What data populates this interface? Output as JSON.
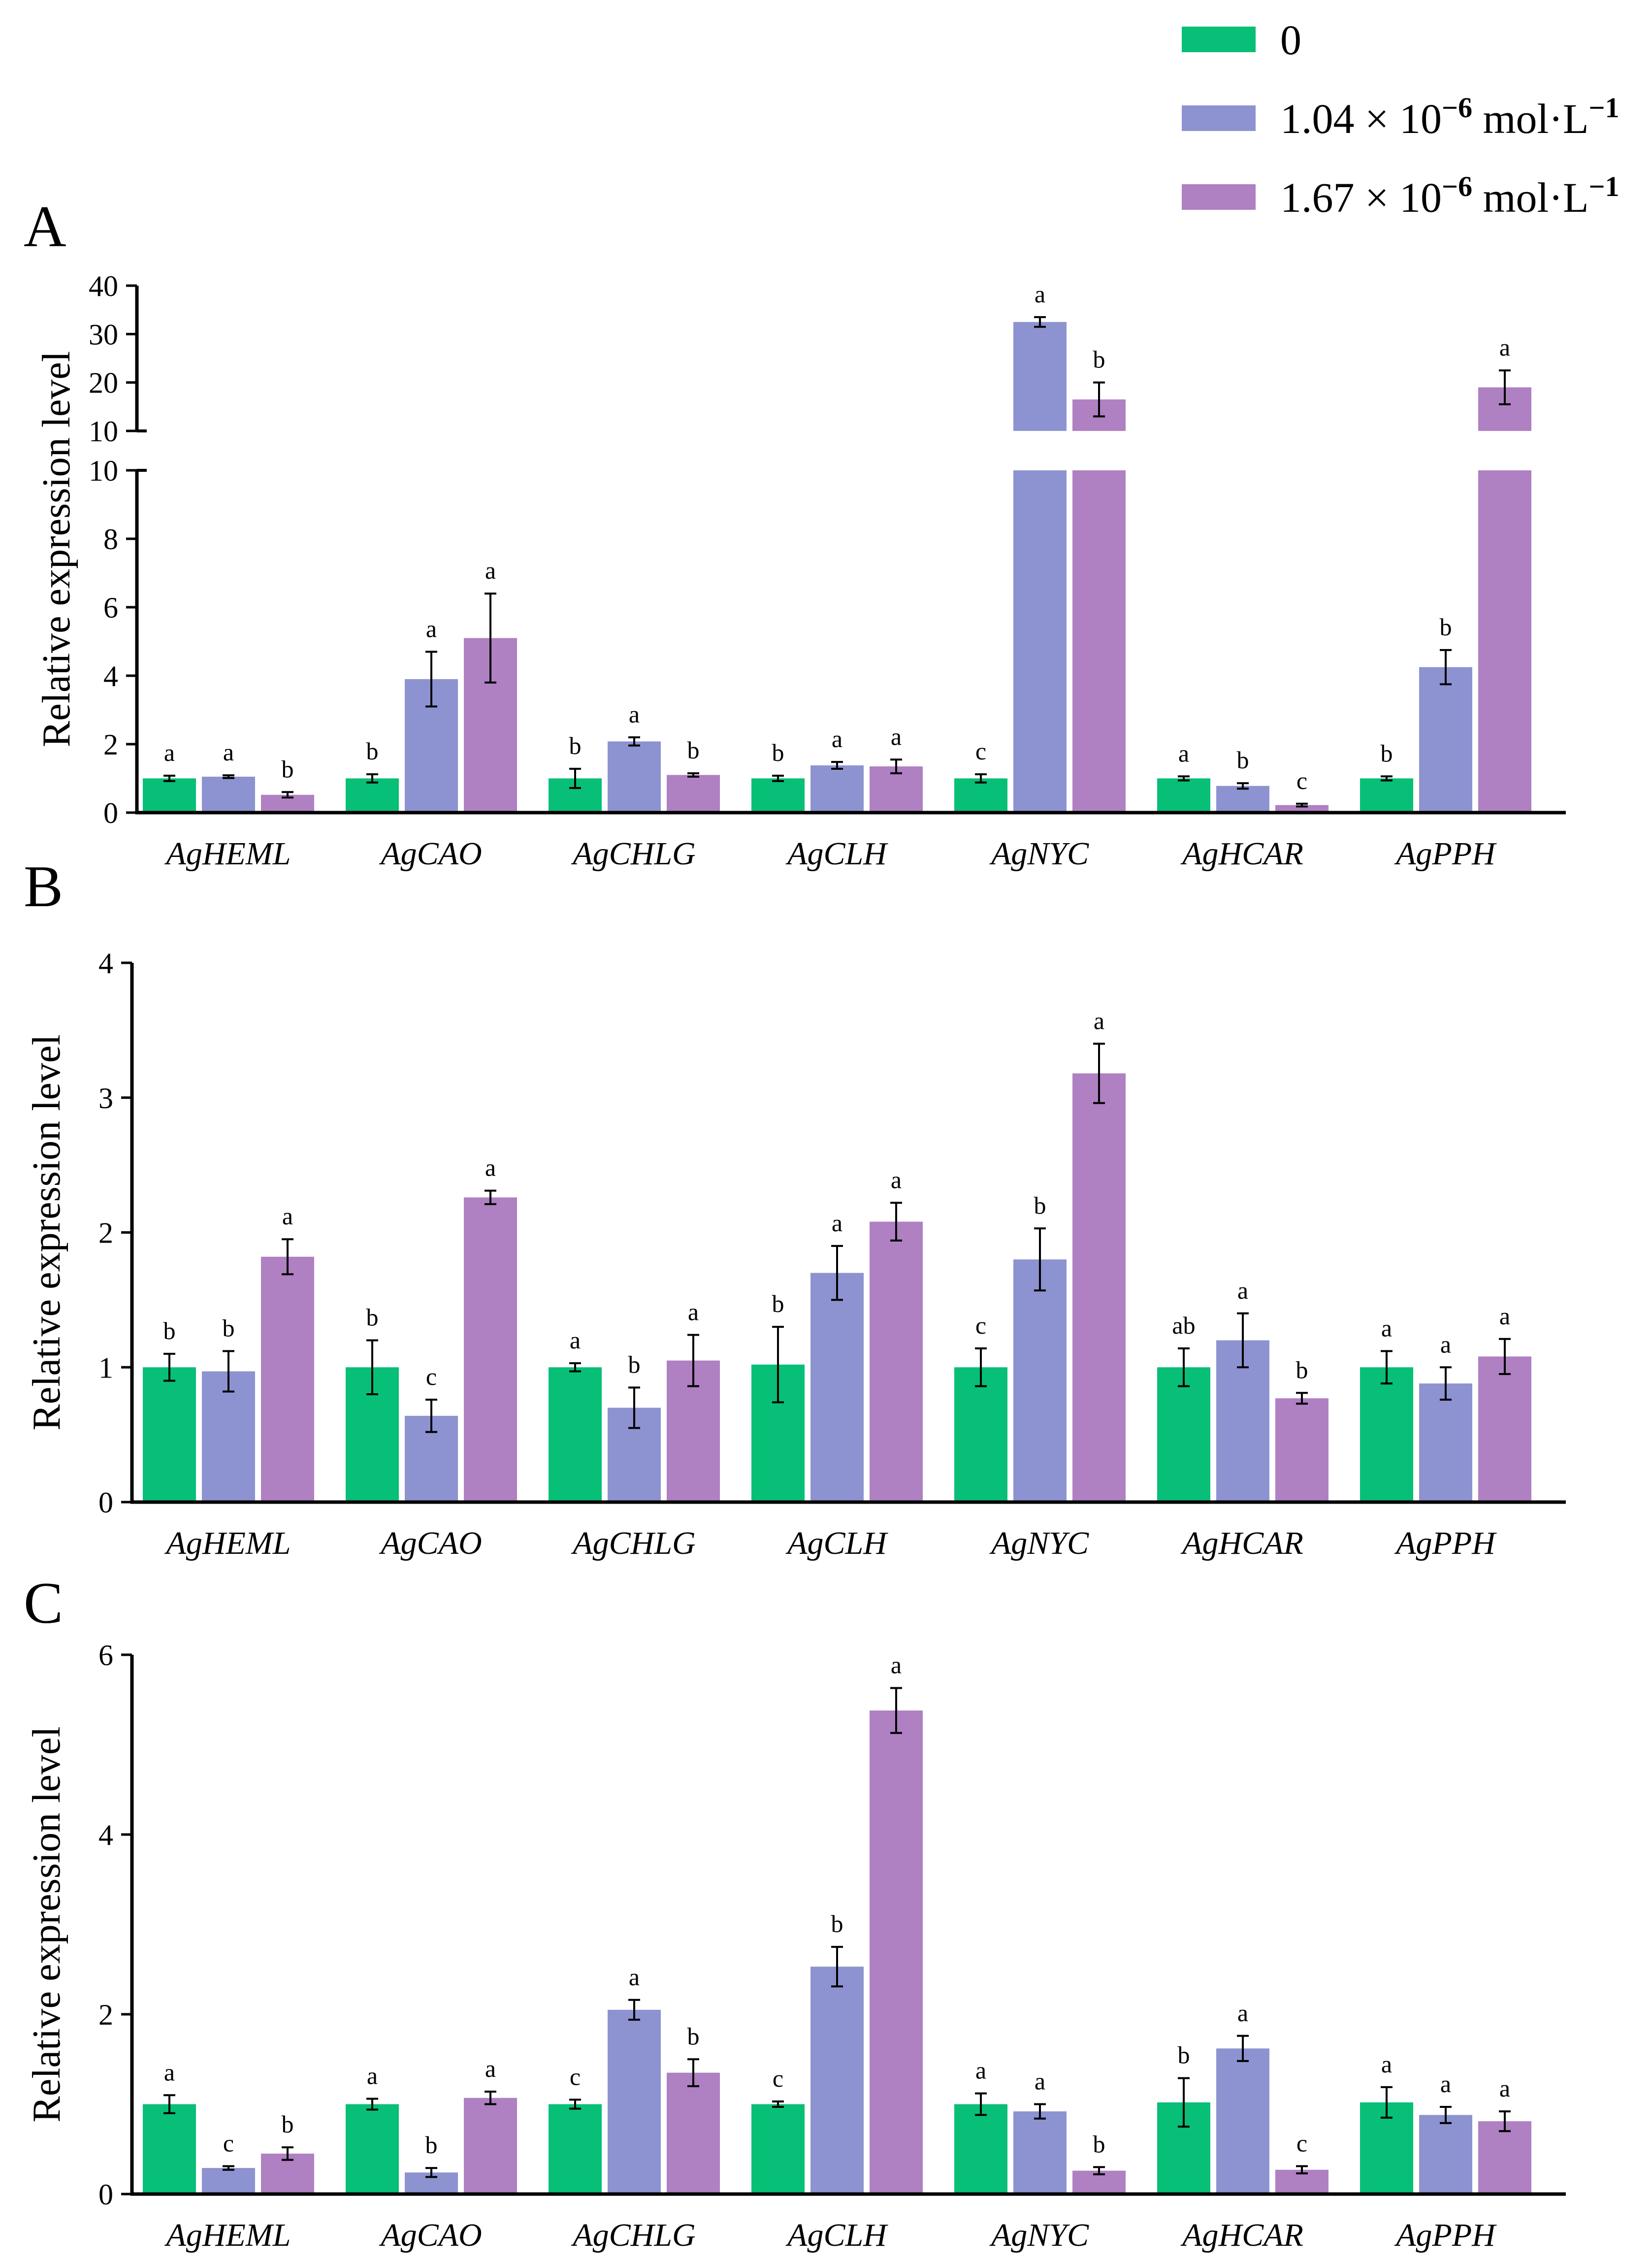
{
  "colors": {
    "control": "#07BF77",
    "low": "#8D93D0",
    "high": "#AF80C2",
    "axis": "#000000"
  },
  "legend": {
    "items": [
      {
        "series": "control",
        "label": "0"
      },
      {
        "series": "low",
        "base": "1.04 × 10",
        "exp": "−6",
        "unit": " mol·L",
        "unit_exp": "−1"
      },
      {
        "series": "high",
        "base": "1.67 × 10",
        "exp": "−6",
        "unit": " mol·L",
        "unit_exp": "−1"
      }
    ]
  },
  "chart_data": [
    {
      "panel": "A",
      "type": "bar",
      "broken_axis": true,
      "ylabel": "Relative expression level",
      "lower_range": [
        0,
        10
      ],
      "lower_ticks": [
        "0",
        "2",
        "4",
        "6",
        "8",
        "10"
      ],
      "upper_range": [
        10,
        40
      ],
      "upper_ticks": [
        "10",
        "20",
        "30",
        "40"
      ],
      "categories": [
        "AgHEML",
        "AgCAO",
        "AgCHLG",
        "AgCLH",
        "AgNYC",
        "AgHCAR",
        "AgPPH"
      ],
      "series": [
        {
          "name": "0",
          "key": "control",
          "values": [
            1.0,
            1.0,
            1.0,
            1.0,
            1.0,
            1.0,
            1.0
          ],
          "errors": [
            0.08,
            0.12,
            0.28,
            0.08,
            0.12,
            0.06,
            0.06
          ],
          "letters": [
            "a",
            "b",
            "b",
            "b",
            "c",
            "a",
            "b"
          ]
        },
        {
          "name": "1.04 × 10−6 mol·L−1",
          "key": "low",
          "values": [
            1.05,
            3.9,
            2.08,
            1.38,
            32.5,
            0.78,
            4.25
          ],
          "errors": [
            0.04,
            0.8,
            0.12,
            0.1,
            1.0,
            0.08,
            0.5
          ],
          "letters": [
            "a",
            "a",
            "a",
            "a",
            "a",
            "b",
            "b"
          ]
        },
        {
          "name": "1.67 × 10−6 mol·L−1",
          "key": "high",
          "values": [
            0.52,
            5.1,
            1.1,
            1.35,
            16.5,
            0.22,
            19.0
          ],
          "errors": [
            0.08,
            1.3,
            0.05,
            0.2,
            3.5,
            0.04,
            3.5
          ],
          "letters": [
            "b",
            "a",
            "b",
            "a",
            "b",
            "c",
            "a"
          ]
        }
      ]
    },
    {
      "panel": "B",
      "type": "bar",
      "ylabel": "Relative expression level",
      "ylim": [
        0,
        4
      ],
      "yticks": [
        "0",
        "1",
        "2",
        "3",
        "4"
      ],
      "categories": [
        "AgHEML",
        "AgCAO",
        "AgCHLG",
        "AgCLH",
        "AgNYC",
        "AgHCAR",
        "AgPPH"
      ],
      "series": [
        {
          "name": "0",
          "key": "control",
          "values": [
            1.0,
            1.0,
            1.0,
            1.02,
            1.0,
            1.0,
            1.0
          ],
          "errors": [
            0.1,
            0.2,
            0.03,
            0.28,
            0.14,
            0.14,
            0.12
          ],
          "letters": [
            "b",
            "b",
            "a",
            "b",
            "c",
            "ab",
            "a"
          ]
        },
        {
          "name": "1.04 × 10−6 mol·L−1",
          "key": "low",
          "values": [
            0.97,
            0.64,
            0.7,
            1.7,
            1.8,
            1.2,
            0.88
          ],
          "errors": [
            0.15,
            0.12,
            0.15,
            0.2,
            0.23,
            0.2,
            0.12
          ],
          "letters": [
            "b",
            "c",
            "b",
            "a",
            "b",
            "a",
            "a"
          ]
        },
        {
          "name": "1.67 × 10−6 mol·L−1",
          "key": "high",
          "values": [
            1.82,
            2.26,
            1.05,
            2.08,
            3.18,
            0.77,
            1.08
          ],
          "errors": [
            0.13,
            0.05,
            0.19,
            0.14,
            0.22,
            0.04,
            0.13
          ],
          "letters": [
            "a",
            "a",
            "a",
            "a",
            "a",
            "b",
            "a"
          ]
        }
      ]
    },
    {
      "panel": "C",
      "type": "bar",
      "ylabel": "Relative expression level",
      "ylim": [
        0,
        6
      ],
      "yticks": [
        "0",
        "2",
        "4",
        "6"
      ],
      "categories": [
        "AgHEML",
        "AgCAO",
        "AgCHLG",
        "AgCLH",
        "AgNYC",
        "AgHCAR",
        "AgPPH"
      ],
      "series": [
        {
          "name": "0",
          "key": "control",
          "values": [
            1.0,
            1.0,
            1.0,
            1.0,
            1.0,
            1.02,
            1.02
          ],
          "errors": [
            0.1,
            0.06,
            0.05,
            0.03,
            0.12,
            0.27,
            0.17
          ],
          "letters": [
            "a",
            "a",
            "c",
            "c",
            "a",
            "b",
            "a"
          ]
        },
        {
          "name": "1.04 × 10−6 mol·L−1",
          "key": "low",
          "values": [
            0.29,
            0.24,
            2.05,
            2.53,
            0.92,
            1.62,
            0.88
          ],
          "errors": [
            0.02,
            0.05,
            0.11,
            0.22,
            0.08,
            0.14,
            0.09
          ],
          "letters": [
            "c",
            "b",
            "a",
            "b",
            "a",
            "a",
            "a"
          ]
        },
        {
          "name": "1.67 × 10−6 mol·L−1",
          "key": "high",
          "values": [
            0.45,
            1.07,
            1.35,
            5.38,
            0.26,
            0.27,
            0.81
          ],
          "errors": [
            0.07,
            0.07,
            0.15,
            0.25,
            0.04,
            0.04,
            0.11
          ],
          "letters": [
            "b",
            "a",
            "b",
            "a",
            "b",
            "c",
            "a"
          ]
        }
      ]
    }
  ]
}
